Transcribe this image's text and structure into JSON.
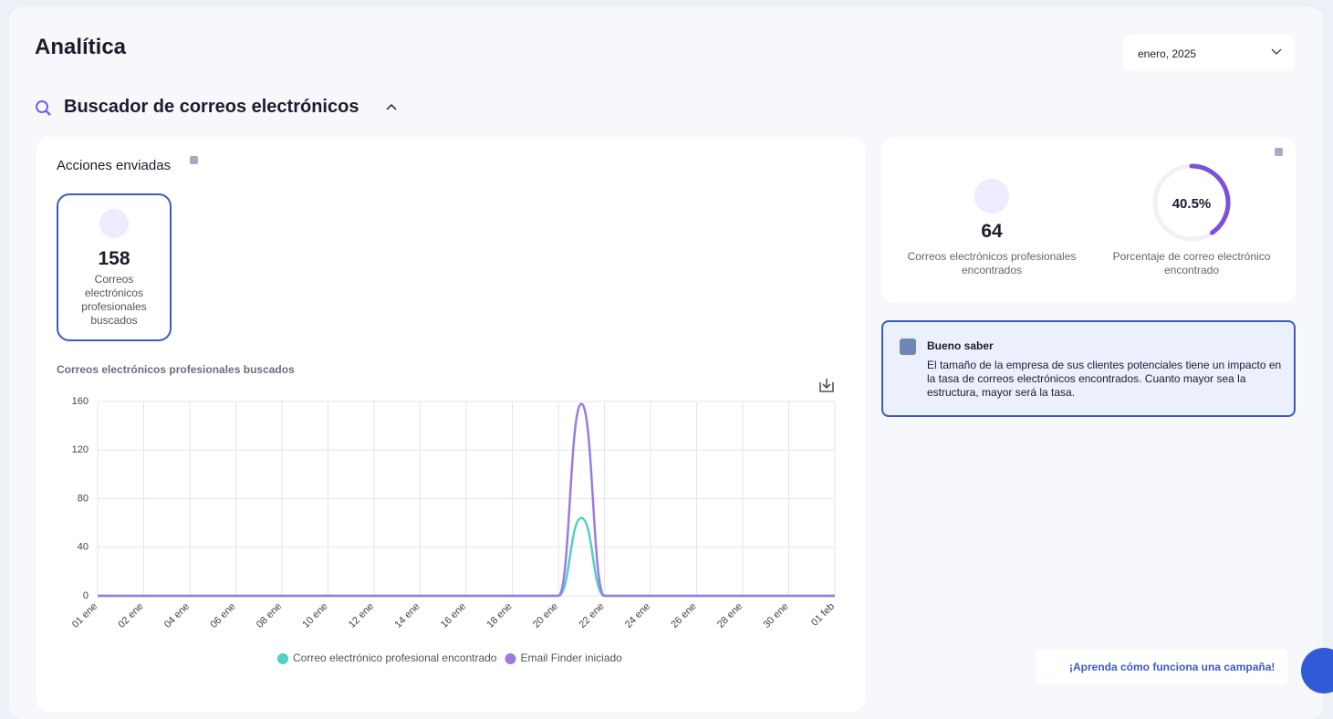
{
  "header": {
    "title": "Analítica",
    "month_select": "enero, 2025"
  },
  "section": {
    "title": "Buscador de correos electrónicos"
  },
  "actions_card": {
    "title": "Acciones enviadas",
    "stat_value": 158,
    "stat_label": "Correos electrónicos profesionales buscados"
  },
  "chart_data": {
    "type": "line",
    "title": "Correos electrónicos profesionales buscados",
    "categories": [
      "01 ene",
      null,
      "02 ene",
      null,
      "04 ene",
      null,
      "06 ene",
      null,
      "08 ene",
      null,
      "10 ene",
      null,
      "12 ene",
      null,
      "14 ene",
      null,
      "16 ene",
      null,
      "18 ene",
      null,
      "20 ene",
      null,
      "22 ene",
      null,
      "24 ene",
      null,
      "26 ene",
      null,
      "28 ene",
      null,
      "30 ene",
      null,
      "01 feb"
    ],
    "series": [
      {
        "name": "Correo electrónico profesional encontrado",
        "color": "#4fd1c5",
        "values": [
          0,
          0,
          0,
          0,
          0,
          0,
          0,
          0,
          0,
          0,
          0,
          0,
          0,
          0,
          0,
          0,
          0,
          0,
          0,
          0,
          0,
          64,
          0,
          0,
          0,
          0,
          0,
          0,
          0,
          0,
          0,
          0,
          0
        ]
      },
      {
        "name": "Email Finder iniciado",
        "color": "#9b7be0",
        "values": [
          0,
          0,
          0,
          0,
          0,
          0,
          0,
          0,
          0,
          0,
          0,
          0,
          0,
          0,
          0,
          0,
          0,
          0,
          0,
          0,
          0,
          158,
          0,
          0,
          0,
          0,
          0,
          0,
          0,
          0,
          0,
          0,
          0
        ]
      }
    ],
    "ylim": [
      0,
      160
    ],
    "yticks": [
      0,
      40,
      80,
      120,
      160
    ],
    "grid": true,
    "legend": "bottom"
  },
  "summary_card": {
    "found_value": 64,
    "found_label": "Correos electrónicos profesionales encontrados",
    "percent": {
      "value": 40.5,
      "label": "40.5%"
    },
    "percent_label": "Porcentaje de correo electrónico encontrado"
  },
  "tip": {
    "title": "Bueno saber",
    "text": "El tamaño de la empresa de sus clientes potenciales tiene un impacto en la tasa de correos electrónicos encontrados. Cuanto mayor sea la estructura, mayor será la tasa."
  },
  "campaign_link": "¡Aprenda cómo funciona una campaña!"
}
